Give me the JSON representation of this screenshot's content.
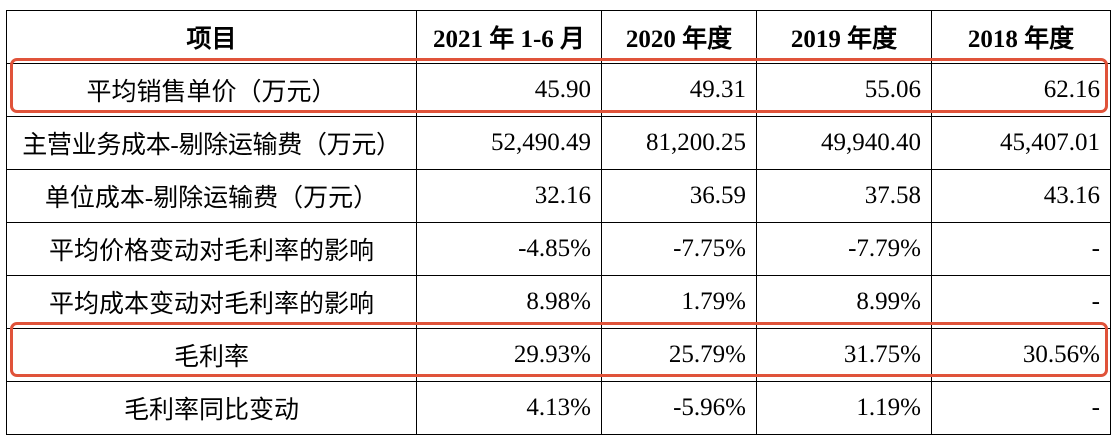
{
  "table": {
    "headers": [
      "项目",
      "2021 年 1-6 月",
      "2020 年度",
      "2019 年度",
      "2018 年度"
    ],
    "rows": [
      {
        "label": "平均销售单价（万元）",
        "values": [
          "45.90",
          "49.31",
          "55.06",
          "62.16"
        ]
      },
      {
        "label": "主营业务成本-剔除运输费（万元）",
        "values": [
          "52,490.49",
          "81,200.25",
          "49,940.40",
          "45,407.01"
        ]
      },
      {
        "label": "单位成本-剔除运输费（万元）",
        "values": [
          "32.16",
          "36.59",
          "37.58",
          "43.16"
        ]
      },
      {
        "label": "平均价格变动对毛利率的影响",
        "values": [
          "-4.85%",
          "-7.75%",
          "-7.79%",
          "-"
        ]
      },
      {
        "label": "平均成本变动对毛利率的影响",
        "values": [
          "8.98%",
          "1.79%",
          "8.99%",
          "-"
        ]
      },
      {
        "label": "毛利率",
        "values": [
          "29.93%",
          "25.79%",
          "31.75%",
          "30.56%"
        ]
      },
      {
        "label": "毛利率同比变动",
        "values": [
          "4.13%",
          "-5.96%",
          "1.19%",
          "-"
        ]
      }
    ]
  },
  "highlight_color": "#e0533a"
}
